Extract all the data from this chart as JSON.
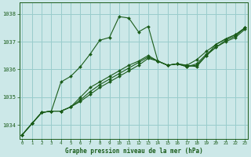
{
  "xlabel": "Graphe pression niveau de la mer (hPa)",
  "x_ticks": [
    0,
    1,
    2,
    3,
    4,
    5,
    6,
    7,
    8,
    9,
    10,
    11,
    12,
    13,
    14,
    15,
    16,
    17,
    18,
    19,
    20,
    21,
    22,
    23
  ],
  "ylim": [
    1033.5,
    1038.4
  ],
  "yticks": [
    1034,
    1035,
    1036,
    1037,
    1038
  ],
  "xlim": [
    -0.3,
    23.3
  ],
  "bg_color": "#cce8e8",
  "grid_color": "#99cccc",
  "line_color": "#1a5c1a",
  "marker_color": "#1a5c1a",
  "series": [
    [
      1033.65,
      1034.05,
      1034.45,
      1034.5,
      1035.55,
      1035.75,
      1036.1,
      1036.55,
      1037.05,
      1037.15,
      1037.9,
      1037.85,
      1037.35,
      1037.55,
      1036.3,
      1036.15,
      1036.2,
      1036.15,
      1036.1,
      1036.5,
      1036.9,
      1037.1,
      1037.25,
      1037.5
    ],
    [
      1033.65,
      1034.05,
      1034.45,
      1034.5,
      1034.5,
      1034.65,
      1035.0,
      1035.35,
      1035.55,
      1035.75,
      1035.95,
      1036.15,
      1036.3,
      1036.5,
      1036.3,
      1036.15,
      1036.2,
      1036.15,
      1036.35,
      1036.65,
      1036.9,
      1037.1,
      1037.25,
      1037.5
    ],
    [
      1033.65,
      1034.05,
      1034.45,
      1034.5,
      1034.5,
      1034.65,
      1034.9,
      1035.2,
      1035.45,
      1035.65,
      1035.85,
      1036.05,
      1036.25,
      1036.45,
      1036.3,
      1036.15,
      1036.2,
      1036.1,
      1036.2,
      1036.55,
      1036.8,
      1037.05,
      1037.2,
      1037.5
    ],
    [
      1033.65,
      1034.05,
      1034.45,
      1034.5,
      1034.5,
      1034.65,
      1034.85,
      1035.1,
      1035.35,
      1035.55,
      1035.75,
      1035.95,
      1036.15,
      1036.4,
      1036.3,
      1036.15,
      1036.2,
      1036.1,
      1036.15,
      1036.5,
      1036.8,
      1037.0,
      1037.15,
      1037.45
    ]
  ]
}
